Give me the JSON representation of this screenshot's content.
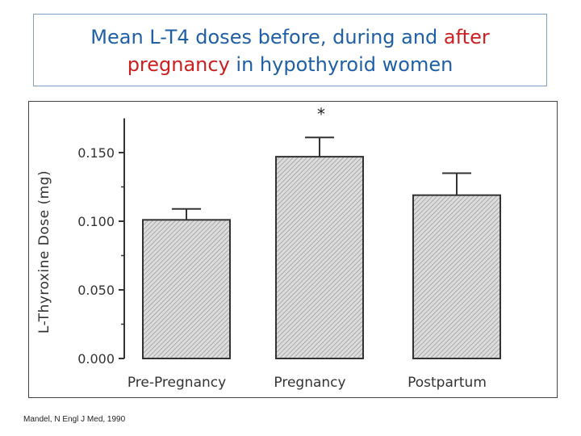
{
  "title": {
    "line1_blue": "Mean L-T4 doses before, during and ",
    "line1_red": "after",
    "line2_red": "pregnancy",
    "line2_blue": " in hypothyroid women"
  },
  "citation": "Mandel, N Engl J Med, 1990",
  "colors": {
    "title_blue": "#1f5fa6",
    "title_red": "#cc1f1f",
    "bar_fill": "#d9d9d9",
    "bar_hatch": "#888888"
  },
  "chart_data": {
    "type": "bar",
    "categories": [
      "Pre-Pregnancy",
      "Pregnancy",
      "Postpartum"
    ],
    "values": [
      0.101,
      0.147,
      0.119
    ],
    "error_upper": [
      0.109,
      0.161,
      0.135
    ],
    "ylabel": "L-Thyroxine Dose (mg)",
    "xlabel": "",
    "ylim": [
      0,
      0.175
    ],
    "yticks": [
      0.0,
      0.05,
      0.1,
      0.15
    ],
    "ytick_labels": [
      "0.000",
      "0.050",
      "0.100",
      "0.150"
    ],
    "annotations": [
      {
        "category": "Pregnancy",
        "text": "*"
      }
    ]
  }
}
